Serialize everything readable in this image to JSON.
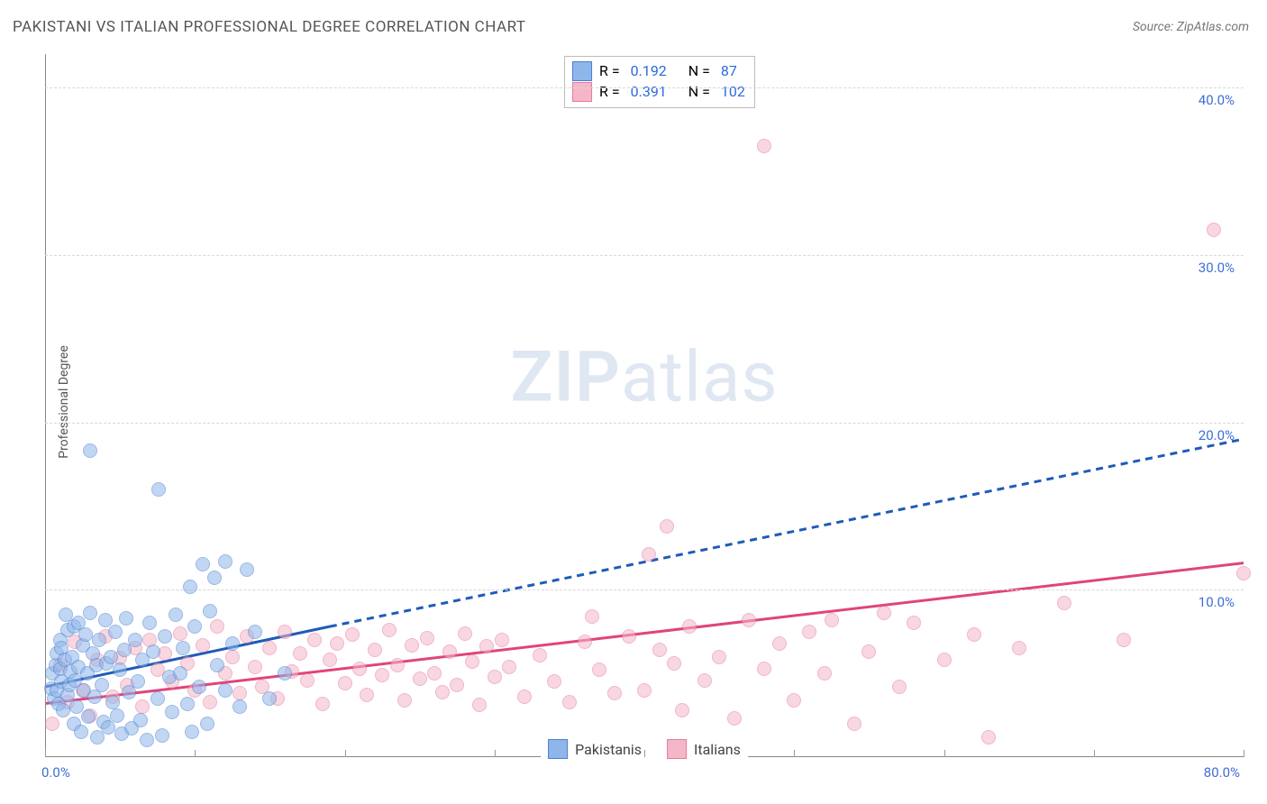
{
  "chart": {
    "type": "scatter",
    "title": "PAKISTANI VS ITALIAN PROFESSIONAL DEGREE CORRELATION CHART",
    "source": "Source: ZipAtlas.com",
    "ylabel": "Professional Degree",
    "watermark_zip": "ZIP",
    "watermark_atlas": "atlas",
    "background_color": "#ffffff",
    "grid_color": "#d8d8d8",
    "axis_color": "#888888",
    "tick_label_color": "#3d6fd6",
    "xlim": [
      0,
      80
    ],
    "ylim": [
      0,
      42
    ],
    "x_ticks": [
      0,
      10,
      20,
      30,
      40,
      50,
      60,
      70,
      80
    ],
    "x_tick_labels": {
      "0": "0.0%",
      "80": "80.0%"
    },
    "y_ticks": [
      10,
      20,
      30,
      40
    ],
    "y_tick_labels": {
      "10": "10.0%",
      "20": "20.0%",
      "30": "30.0%",
      "40": "40.0%"
    },
    "marker_radius": 8,
    "marker_opacity": 0.55,
    "series": {
      "pakistanis": {
        "label": "Pakistanis",
        "fill_color": "#8fb6ea",
        "stroke_color": "#4a7fd0",
        "line_color": "#1f5bb8",
        "trend": {
          "solid": [
            [
              0,
              4.2
            ],
            [
              19,
              7.8
            ]
          ],
          "dashed": [
            [
              19,
              7.8
            ],
            [
              80,
              19.0
            ]
          ]
        },
        "points": [
          [
            0.4,
            4.1
          ],
          [
            0.5,
            5.0
          ],
          [
            0.6,
            3.5
          ],
          [
            0.7,
            5.5
          ],
          [
            0.8,
            6.2
          ],
          [
            0.8,
            4.0
          ],
          [
            0.9,
            3.2
          ],
          [
            1.0,
            7.0
          ],
          [
            1.0,
            5.3
          ],
          [
            1.1,
            4.5
          ],
          [
            1.1,
            6.5
          ],
          [
            1.2,
            2.8
          ],
          [
            1.3,
            5.8
          ],
          [
            1.4,
            8.5
          ],
          [
            1.5,
            3.7
          ],
          [
            1.5,
            7.6
          ],
          [
            1.6,
            4.3
          ],
          [
            1.7,
            5.1
          ],
          [
            1.8,
            6.0
          ],
          [
            1.9,
            2.0
          ],
          [
            1.9,
            7.8
          ],
          [
            2.0,
            4.6
          ],
          [
            2.1,
            3.0
          ],
          [
            2.2,
            8.0
          ],
          [
            2.2,
            5.4
          ],
          [
            2.4,
            1.5
          ],
          [
            2.5,
            6.7
          ],
          [
            2.6,
            4.0
          ],
          [
            2.7,
            7.3
          ],
          [
            2.8,
            5.0
          ],
          [
            2.9,
            2.4
          ],
          [
            3.0,
            8.6
          ],
          [
            3.0,
            18.3
          ],
          [
            3.2,
            6.2
          ],
          [
            3.3,
            3.6
          ],
          [
            3.4,
            5.5
          ],
          [
            3.5,
            1.2
          ],
          [
            3.6,
            7.0
          ],
          [
            3.8,
            4.3
          ],
          [
            3.9,
            2.1
          ],
          [
            4.0,
            8.2
          ],
          [
            4.1,
            5.6
          ],
          [
            4.2,
            1.8
          ],
          [
            4.4,
            6.0
          ],
          [
            4.5,
            3.3
          ],
          [
            4.7,
            7.5
          ],
          [
            4.8,
            2.5
          ],
          [
            5.0,
            5.2
          ],
          [
            5.1,
            1.4
          ],
          [
            5.3,
            6.4
          ],
          [
            5.4,
            8.3
          ],
          [
            5.6,
            3.9
          ],
          [
            5.8,
            1.7
          ],
          [
            6.0,
            7.0
          ],
          [
            6.2,
            4.5
          ],
          [
            6.4,
            2.2
          ],
          [
            6.5,
            5.8
          ],
          [
            6.8,
            1.0
          ],
          [
            7.0,
            8.0
          ],
          [
            7.2,
            6.3
          ],
          [
            7.5,
            3.5
          ],
          [
            7.6,
            16.0
          ],
          [
            7.8,
            1.3
          ],
          [
            8.0,
            7.2
          ],
          [
            8.3,
            4.8
          ],
          [
            8.5,
            2.7
          ],
          [
            8.7,
            8.5
          ],
          [
            9.0,
            5.0
          ],
          [
            9.2,
            6.5
          ],
          [
            9.5,
            3.2
          ],
          [
            9.7,
            10.2
          ],
          [
            9.8,
            1.5
          ],
          [
            10.0,
            7.8
          ],
          [
            10.3,
            4.2
          ],
          [
            10.5,
            11.5
          ],
          [
            10.8,
            2.0
          ],
          [
            11.0,
            8.7
          ],
          [
            11.3,
            10.7
          ],
          [
            11.5,
            5.5
          ],
          [
            12.0,
            4.0
          ],
          [
            12.0,
            11.7
          ],
          [
            12.5,
            6.8
          ],
          [
            13.0,
            3.0
          ],
          [
            13.5,
            11.2
          ],
          [
            14.0,
            7.5
          ],
          [
            15.0,
            3.5
          ],
          [
            16.0,
            5.0
          ]
        ]
      },
      "italians": {
        "label": "Italians",
        "fill_color": "#f4b7c8",
        "stroke_color": "#e77aa0",
        "line_color": "#e0447b",
        "trend": {
          "solid": [
            [
              0,
              3.2
            ],
            [
              80,
              11.6
            ]
          ]
        },
        "points": [
          [
            0.5,
            2.0
          ],
          [
            1.0,
            5.5
          ],
          [
            1.5,
            3.3
          ],
          [
            2.0,
            6.9
          ],
          [
            2.5,
            4.0
          ],
          [
            3.0,
            2.5
          ],
          [
            3.5,
            5.8
          ],
          [
            4.0,
            7.2
          ],
          [
            4.5,
            3.6
          ],
          [
            5.0,
            5.9
          ],
          [
            5.5,
            4.3
          ],
          [
            6.0,
            6.5
          ],
          [
            6.5,
            3.0
          ],
          [
            7.0,
            7.0
          ],
          [
            7.5,
            5.2
          ],
          [
            8.0,
            6.2
          ],
          [
            8.5,
            4.5
          ],
          [
            9.0,
            7.4
          ],
          [
            9.5,
            5.6
          ],
          [
            10.0,
            4.0
          ],
          [
            10.5,
            6.7
          ],
          [
            11.0,
            3.3
          ],
          [
            11.5,
            7.8
          ],
          [
            12.0,
            5.0
          ],
          [
            12.5,
            6.0
          ],
          [
            13.0,
            3.8
          ],
          [
            13.5,
            7.2
          ],
          [
            14.0,
            5.4
          ],
          [
            14.5,
            4.2
          ],
          [
            15.0,
            6.5
          ],
          [
            15.5,
            3.5
          ],
          [
            16.0,
            7.5
          ],
          [
            16.5,
            5.1
          ],
          [
            17.0,
            6.2
          ],
          [
            17.5,
            4.6
          ],
          [
            18.0,
            7.0
          ],
          [
            18.5,
            3.2
          ],
          [
            19.0,
            5.8
          ],
          [
            19.5,
            6.8
          ],
          [
            20.0,
            4.4
          ],
          [
            20.5,
            7.3
          ],
          [
            21.0,
            5.3
          ],
          [
            21.5,
            3.7
          ],
          [
            22.0,
            6.4
          ],
          [
            22.5,
            4.9
          ],
          [
            23.0,
            7.6
          ],
          [
            23.5,
            5.5
          ],
          [
            24.0,
            3.4
          ],
          [
            24.5,
            6.7
          ],
          [
            25.0,
            4.7
          ],
          [
            25.5,
            7.1
          ],
          [
            26.0,
            5.0
          ],
          [
            26.5,
            3.9
          ],
          [
            27.0,
            6.3
          ],
          [
            27.5,
            4.3
          ],
          [
            28.0,
            7.4
          ],
          [
            28.5,
            5.7
          ],
          [
            29.0,
            3.1
          ],
          [
            29.5,
            6.6
          ],
          [
            30.0,
            4.8
          ],
          [
            30.5,
            7.0
          ],
          [
            31.0,
            5.4
          ],
          [
            32.0,
            3.6
          ],
          [
            33.0,
            6.1
          ],
          [
            34.0,
            4.5
          ],
          [
            35.0,
            3.3
          ],
          [
            36.0,
            6.9
          ],
          [
            36.5,
            8.4
          ],
          [
            37.0,
            5.2
          ],
          [
            38.0,
            3.8
          ],
          [
            39.0,
            7.2
          ],
          [
            40.0,
            4.0
          ],
          [
            40.3,
            12.1
          ],
          [
            41.0,
            6.4
          ],
          [
            41.5,
            13.8
          ],
          [
            42.0,
            5.6
          ],
          [
            42.5,
            2.8
          ],
          [
            43.0,
            7.8
          ],
          [
            44.0,
            4.6
          ],
          [
            45.0,
            6.0
          ],
          [
            46.0,
            2.3
          ],
          [
            47.0,
            8.2
          ],
          [
            48.0,
            5.3
          ],
          [
            48.0,
            36.5
          ],
          [
            49.0,
            6.8
          ],
          [
            50.0,
            3.4
          ],
          [
            51.0,
            7.5
          ],
          [
            52.0,
            5.0
          ],
          [
            52.5,
            8.2
          ],
          [
            54.0,
            2.0
          ],
          [
            55.0,
            6.3
          ],
          [
            56.0,
            8.6
          ],
          [
            57.0,
            4.2
          ],
          [
            58.0,
            8.0
          ],
          [
            60.0,
            5.8
          ],
          [
            62.0,
            7.3
          ],
          [
            63.0,
            1.2
          ],
          [
            65.0,
            6.5
          ],
          [
            68.0,
            9.2
          ],
          [
            72.0,
            7.0
          ],
          [
            78.0,
            31.5
          ],
          [
            80.0,
            11.0
          ]
        ]
      }
    },
    "stats": [
      {
        "series": "pakistanis",
        "R_label": "R = ",
        "R": "0.192",
        "N_label": "N = ",
        "N": "87"
      },
      {
        "series": "italians",
        "R_label": "R = ",
        "R": "0.391",
        "N_label": "N = ",
        "N": "102"
      }
    ]
  }
}
